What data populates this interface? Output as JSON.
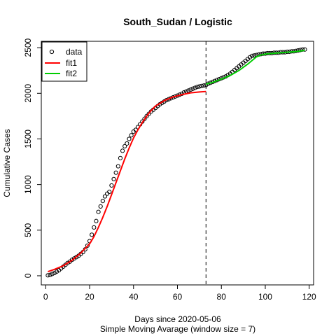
{
  "chart_data": {
    "type": "scatter",
    "title": "South_Sudan / Logistic",
    "xlabel": "Days since 2020-05-06",
    "xlabel2": "Simple Moving Avarage (window size = 7)",
    "ylabel": "Cumulative Cases",
    "xlim": [
      -2,
      122
    ],
    "ylim": [
      -100,
      2570
    ],
    "x_ticks": [
      0,
      20,
      40,
      60,
      80,
      100,
      120
    ],
    "y_ticks": [
      0,
      500,
      1000,
      1500,
      2000,
      2500
    ],
    "cutoff_day": 73,
    "legend_position": "top-left",
    "legend": [
      {
        "label": "data",
        "kind": "point",
        "color": "#000000"
      },
      {
        "label": "fit1",
        "kind": "line",
        "color": "#ff0000"
      },
      {
        "label": "fit2",
        "kind": "line",
        "color": "#00cd00"
      }
    ],
    "series": [
      {
        "name": "data",
        "kind": "points",
        "color": "#000000",
        "x": [
          1,
          2,
          3,
          4,
          5,
          6,
          7,
          8,
          9,
          10,
          11,
          12,
          13,
          14,
          15,
          16,
          17,
          18,
          19,
          20,
          21,
          22,
          23,
          24,
          25,
          26,
          27,
          28,
          29,
          30,
          31,
          32,
          33,
          34,
          35,
          36,
          37,
          38,
          39,
          40,
          41,
          42,
          43,
          44,
          45,
          46,
          47,
          48,
          49,
          50,
          51,
          52,
          53,
          54,
          55,
          56,
          57,
          58,
          59,
          60,
          61,
          62,
          63,
          64,
          65,
          66,
          67,
          68,
          69,
          70,
          71,
          72,
          73,
          74,
          75,
          76,
          77,
          78,
          79,
          80,
          81,
          82,
          83,
          84,
          85,
          86,
          87,
          88,
          89,
          90,
          91,
          92,
          93,
          94,
          95,
          96,
          97,
          98,
          99,
          100,
          101,
          102,
          103,
          104,
          105,
          106,
          107,
          108,
          109,
          110,
          111,
          112,
          113,
          114,
          115,
          116,
          117,
          118
        ],
        "y": [
          5,
          10,
          20,
          30,
          45,
          60,
          80,
          100,
          120,
          140,
          155,
          175,
          190,
          205,
          220,
          240,
          260,
          290,
          330,
          380,
          450,
          530,
          600,
          700,
          760,
          820,
          870,
          900,
          920,
          990,
          1060,
          1130,
          1200,
          1290,
          1370,
          1420,
          1450,
          1500,
          1540,
          1580,
          1600,
          1630,
          1660,
          1690,
          1720,
          1750,
          1775,
          1800,
          1820,
          1840,
          1860,
          1880,
          1895,
          1910,
          1925,
          1935,
          1945,
          1955,
          1965,
          1975,
          1985,
          1995,
          2010,
          2020,
          2030,
          2040,
          2050,
          2060,
          2070,
          2075,
          2080,
          2085,
          2090,
          2105,
          2115,
          2125,
          2135,
          2145,
          2155,
          2165,
          2175,
          2185,
          2200,
          2215,
          2235,
          2255,
          2275,
          2295,
          2315,
          2335,
          2355,
          2375,
          2395,
          2410,
          2415,
          2420,
          2425,
          2430,
          2435,
          2435,
          2440,
          2440,
          2440,
          2445,
          2445,
          2445,
          2450,
          2450,
          2450,
          2455,
          2455,
          2460,
          2460,
          2465,
          2470,
          2475,
          2480,
          2480
        ]
      },
      {
        "name": "fit1",
        "kind": "line",
        "color": "#ff0000",
        "x": [
          1,
          4,
          8,
          12,
          16,
          20,
          22,
          24,
          26,
          28,
          30,
          32,
          34,
          36,
          38,
          40,
          42,
          44,
          46,
          48,
          50,
          54,
          58,
          62,
          66,
          70,
          73
        ],
        "y": [
          45,
          70,
          110,
          170,
          250,
          350,
          430,
          530,
          640,
          760,
          890,
          1020,
          1150,
          1280,
          1400,
          1510,
          1600,
          1680,
          1750,
          1810,
          1860,
          1920,
          1960,
          1985,
          2005,
          2015,
          2020
        ]
      },
      {
        "name": "fit2",
        "kind": "line",
        "color": "#00cd00",
        "x": [
          73,
          76,
          80,
          84,
          88,
          92,
          94,
          96,
          98,
          100,
          102,
          106,
          110,
          114,
          118
        ],
        "y": [
          2100,
          2120,
          2155,
          2195,
          2250,
          2320,
          2360,
          2400,
          2420,
          2430,
          2435,
          2442,
          2450,
          2458,
          2470
        ]
      }
    ]
  }
}
